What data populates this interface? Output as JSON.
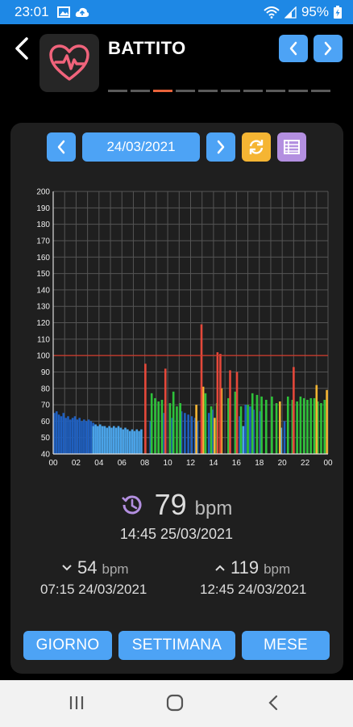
{
  "status_bar": {
    "time": "23:01",
    "battery": "95%"
  },
  "header": {
    "title": "BATTITO",
    "app_icon": "heart-pulse-icon",
    "page_count": 10,
    "active_page": 2
  },
  "date_nav": {
    "date": "24/03/2021"
  },
  "chart_data": {
    "type": "bar",
    "title": "",
    "xlabel": "",
    "ylabel": "",
    "ylim": [
      40,
      200
    ],
    "yticks": [
      40,
      50,
      60,
      70,
      80,
      90,
      100,
      110,
      120,
      130,
      140,
      150,
      160,
      170,
      180,
      190,
      200
    ],
    "xticks": [
      "00",
      "02",
      "04",
      "06",
      "08",
      "10",
      "12",
      "14",
      "16",
      "18",
      "20",
      "22",
      "00"
    ],
    "x_range_hours": [
      0,
      24
    ],
    "threshold_line": 100,
    "grid": true,
    "series": [
      {
        "color": "#1f5fbf",
        "points": [
          [
            0.1,
            65
          ],
          [
            0.3,
            66
          ],
          [
            0.5,
            64
          ],
          [
            0.7,
            63
          ],
          [
            0.9,
            65
          ],
          [
            1.1,
            62
          ],
          [
            1.3,
            63
          ],
          [
            1.5,
            61
          ],
          [
            1.7,
            62
          ],
          [
            1.9,
            63
          ],
          [
            2.1,
            61
          ],
          [
            2.3,
            62
          ],
          [
            2.5,
            60
          ],
          [
            2.7,
            61
          ],
          [
            2.9,
            60
          ],
          [
            3.1,
            61
          ],
          [
            3.3,
            60
          ],
          [
            3.5,
            59
          ],
          [
            3.7,
            58
          ],
          [
            3.9,
            57
          ],
          [
            8.5,
            60
          ],
          [
            9.7,
            65
          ],
          [
            10.4,
            62
          ],
          [
            11.2,
            66
          ],
          [
            11.5,
            65
          ],
          [
            11.8,
            64
          ],
          [
            12.1,
            63
          ],
          [
            12.4,
            62
          ],
          [
            12.6,
            60
          ],
          [
            13.6,
            65
          ],
          [
            13.9,
            67
          ],
          [
            16.3,
            63
          ],
          [
            16.8,
            70
          ],
          [
            17.2,
            69
          ],
          [
            17.5,
            67
          ],
          [
            18.1,
            66
          ],
          [
            19.8,
            63
          ],
          [
            20.2,
            60
          ]
        ]
      },
      {
        "color": "#4aa3e8",
        "points": [
          [
            3.5,
            57
          ],
          [
            3.7,
            58
          ],
          [
            3.9,
            57
          ],
          [
            4.1,
            58
          ],
          [
            4.3,
            57
          ],
          [
            4.5,
            57
          ],
          [
            4.7,
            56
          ],
          [
            4.9,
            57
          ],
          [
            5.1,
            56
          ],
          [
            5.3,
            57
          ],
          [
            5.5,
            56
          ],
          [
            5.7,
            57
          ],
          [
            5.9,
            56
          ],
          [
            6.1,
            55
          ],
          [
            6.3,
            56
          ],
          [
            6.5,
            55
          ],
          [
            6.7,
            54
          ],
          [
            6.9,
            55
          ],
          [
            7.1,
            54
          ],
          [
            7.3,
            55
          ],
          [
            7.5,
            54
          ],
          [
            7.7,
            55
          ],
          [
            16.6,
            57
          ],
          [
            19.9,
            56
          ]
        ]
      },
      {
        "color": "#2ec23a",
        "points": [
          [
            8.6,
            77
          ],
          [
            8.9,
            74
          ],
          [
            9.2,
            72
          ],
          [
            9.5,
            73
          ],
          [
            10.2,
            71
          ],
          [
            10.5,
            78
          ],
          [
            10.8,
            69
          ],
          [
            11.1,
            71
          ],
          [
            13.3,
            77
          ],
          [
            13.8,
            69
          ],
          [
            14.3,
            71
          ],
          [
            15.3,
            74
          ],
          [
            15.9,
            78
          ],
          [
            16.4,
            69
          ],
          [
            17.0,
            70
          ],
          [
            17.4,
            77
          ],
          [
            17.8,
            76
          ],
          [
            18.2,
            75
          ],
          [
            18.6,
            73
          ],
          [
            19.1,
            75
          ],
          [
            19.5,
            71
          ],
          [
            20.5,
            75
          ],
          [
            20.9,
            73
          ],
          [
            21.3,
            72
          ],
          [
            21.6,
            75
          ],
          [
            21.9,
            74
          ],
          [
            22.2,
            73
          ],
          [
            22.5,
            74
          ],
          [
            22.8,
            74
          ],
          [
            23.1,
            72
          ],
          [
            23.4,
            71
          ],
          [
            23.7,
            73
          ]
        ]
      },
      {
        "color": "#f5b533",
        "points": [
          [
            12.5,
            70
          ],
          [
            13.1,
            81
          ],
          [
            14.1,
            62
          ],
          [
            14.7,
            80
          ],
          [
            19.8,
            72
          ],
          [
            23.0,
            82
          ],
          [
            23.9,
            79
          ]
        ]
      },
      {
        "color": "#e5483a",
        "points": [
          [
            8.05,
            95
          ],
          [
            9.8,
            92
          ],
          [
            12.95,
            119
          ],
          [
            14.35,
            102
          ],
          [
            14.6,
            101
          ],
          [
            15.45,
            91
          ],
          [
            16.05,
            90
          ],
          [
            21.0,
            93
          ]
        ]
      }
    ]
  },
  "current": {
    "value": "79",
    "unit": "bpm",
    "time": "14:45 25/03/2021"
  },
  "minimum": {
    "value": "54",
    "unit": "bpm",
    "time": "07:15 24/03/2021"
  },
  "maximum": {
    "value": "119",
    "unit": "bpm",
    "time": "12:45 24/03/2021"
  },
  "tabs": {
    "day": "GIORNO",
    "week": "SETTIMANA",
    "month": "MESE"
  },
  "colors": {
    "accent": "#4da3f5",
    "status_bar": "#1e88e5",
    "card": "#1f1f1f"
  }
}
